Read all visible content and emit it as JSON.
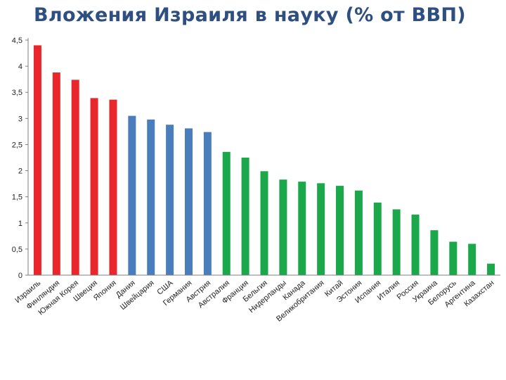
{
  "title": "Вложения Израиля в науку (% от ВВП)",
  "colors": {
    "title": "#2e4f7f",
    "red": "#e8262b",
    "blue": "#4a7dbb",
    "green": "#1aa84a",
    "axis": "#7f7f7f"
  },
  "chart_data": {
    "type": "bar",
    "title": "Вложения Израиля в науку (% от ВВП)",
    "xlabel": "",
    "ylabel": "",
    "ylim": [
      0,
      4.5
    ],
    "yticks": [
      "0",
      "0,5",
      "1",
      "1,5",
      "2",
      "2,5",
      "3",
      "3,5",
      "4",
      "4,5"
    ],
    "ytick_values": [
      0,
      0.5,
      1,
      1.5,
      2,
      2.5,
      3,
      3.5,
      4,
      4.5
    ],
    "grid": false,
    "categories": [
      "Израиль",
      "Финляндия",
      "Южная Корея",
      "Швеция",
      "Япония",
      "Дания",
      "Швейцария",
      "США",
      "Германия",
      "Австрия",
      "Австралия",
      "Франция",
      "Бельгия",
      "Нидерланды",
      "Канада",
      "Великобритания",
      "Китай",
      "Эстония",
      "Испания",
      "Италия",
      "Россия",
      "Украина",
      "Белорусь",
      "Аргентина",
      "Казахстан"
    ],
    "values": [
      4.4,
      3.88,
      3.74,
      3.39,
      3.36,
      3.05,
      2.98,
      2.88,
      2.81,
      2.74,
      2.36,
      2.25,
      1.99,
      1.83,
      1.79,
      1.76,
      1.71,
      1.62,
      1.39,
      1.26,
      1.16,
      0.86,
      0.64,
      0.6,
      0.22
    ],
    "bar_colors": [
      "red",
      "red",
      "red",
      "red",
      "red",
      "blue",
      "blue",
      "blue",
      "blue",
      "blue",
      "green",
      "green",
      "green",
      "green",
      "green",
      "green",
      "green",
      "green",
      "green",
      "green",
      "green",
      "green",
      "green",
      "green",
      "green"
    ]
  }
}
